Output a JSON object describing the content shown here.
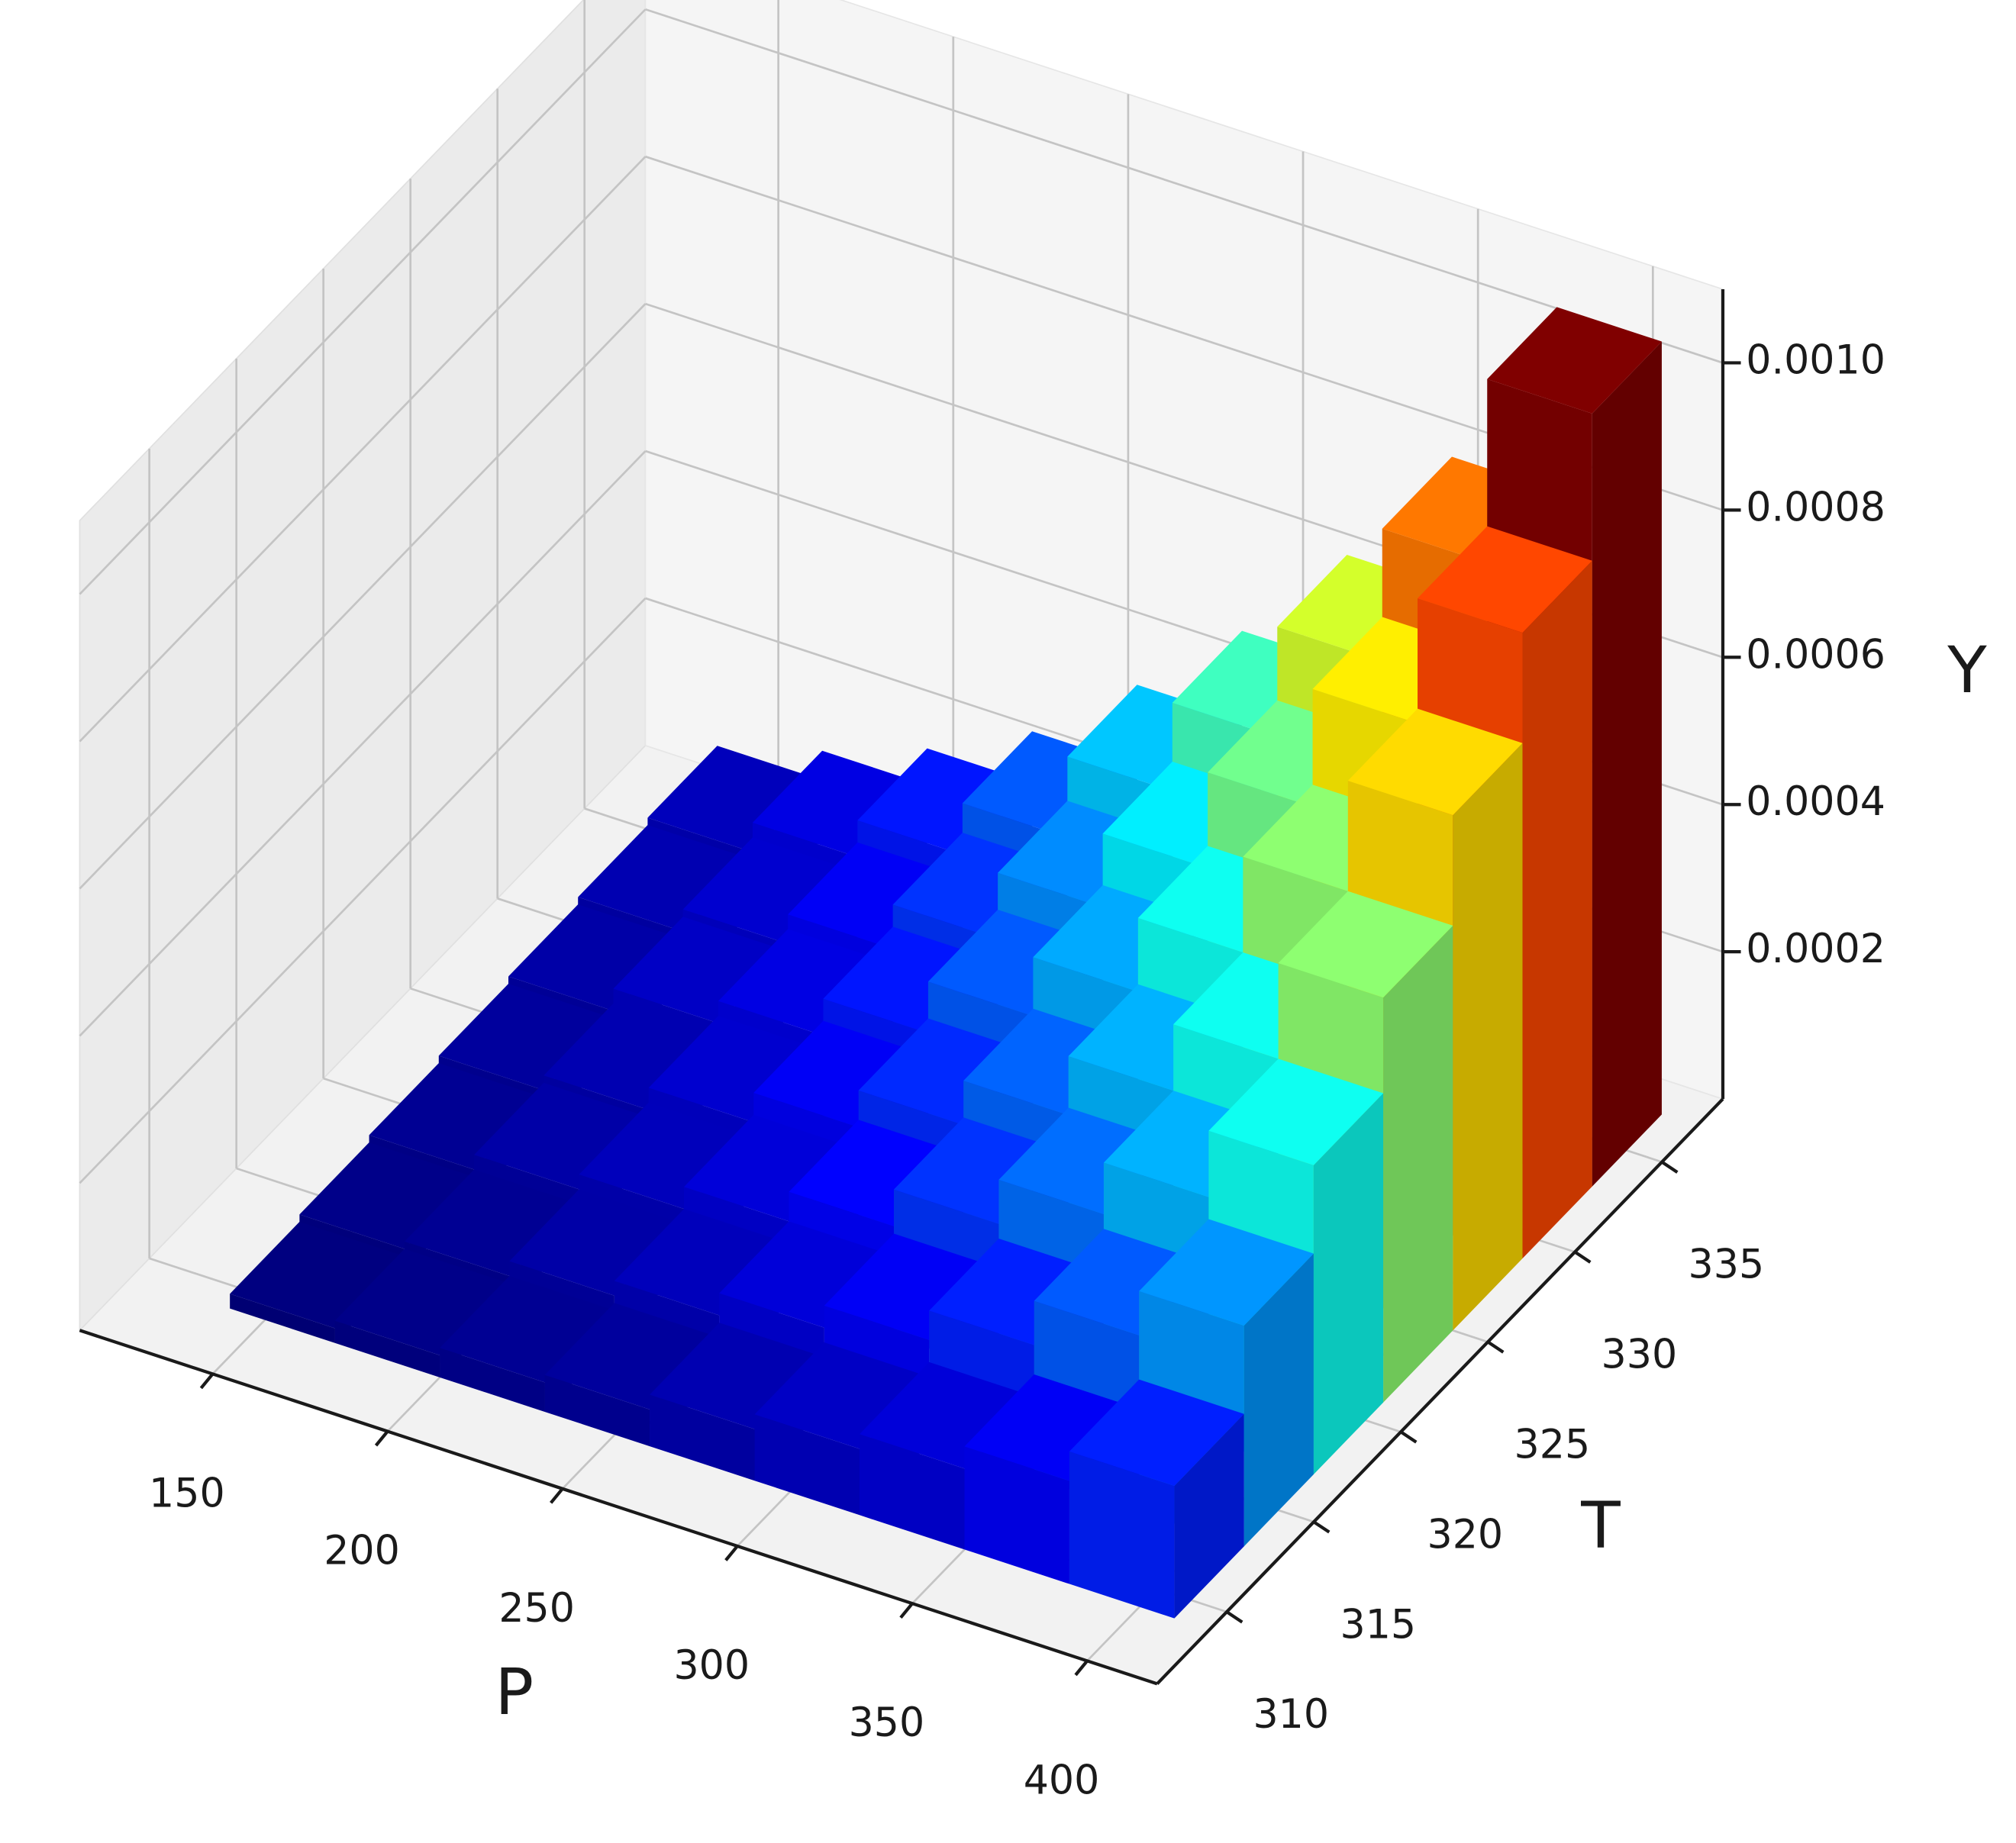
{
  "chart_data": {
    "type": "bar3d",
    "xlabel": "P",
    "ylabel": "T",
    "zlabel": "Y",
    "x": [
      155,
      185,
      215,
      245,
      275,
      305,
      335,
      365,
      395
    ],
    "y": [
      311,
      315,
      319,
      323,
      327,
      331,
      335
    ],
    "values": [
      [
        2e-05,
        3e-05,
        4e-05,
        5e-05,
        7e-05,
        9e-05,
        0.00011,
        0.00014,
        0.00018
      ],
      [
        3e-05,
        4e-05,
        6e-05,
        8e-05,
        0.00011,
        0.00014,
        0.00018,
        0.00024,
        0.0003
      ],
      [
        4e-05,
        6e-05,
        8e-05,
        0.00011,
        0.00015,
        0.0002,
        0.00026,
        0.00033,
        0.00042
      ],
      [
        5e-05,
        7e-05,
        0.0001,
        0.00014,
        0.00019,
        0.00025,
        0.00033,
        0.00042,
        0.00055
      ],
      [
        6e-05,
        9e-05,
        0.00012,
        0.00017,
        0.00024,
        0.00032,
        0.00042,
        0.00055,
        0.0007
      ],
      [
        7e-05,
        0.0001,
        0.00014,
        0.0002,
        0.00029,
        0.00039,
        0.00052,
        0.00068,
        0.00085
      ],
      [
        8e-05,
        0.00012,
        0.00017,
        0.00024,
        0.00035,
        0.00047,
        0.00062,
        0.0008,
        0.00105
      ]
    ],
    "xlim": [
      112,
      420
    ],
    "ylim": [
      306,
      338.5
    ],
    "zlim": [
      0,
      0.0011
    ],
    "xticks": [
      150,
      200,
      250,
      300,
      350,
      400
    ],
    "yticks": [
      310,
      315,
      320,
      325,
      330,
      335
    ],
    "zticks": [
      0.0002,
      0.0004,
      0.0006,
      0.0008,
      {
        "value": 0.001,
        "label": "0.0010"
      }
    ],
    "colormap": "jet",
    "grid": true
  }
}
